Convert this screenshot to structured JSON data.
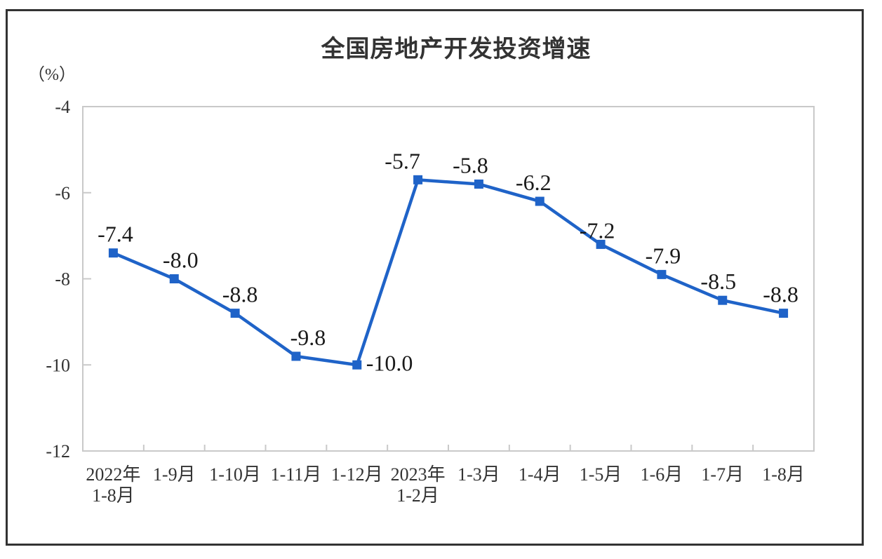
{
  "chart_data": {
    "type": "line",
    "title": "全国房地产开发投资增速",
    "unit_label": "（%）",
    "categories": [
      [
        "2022年",
        "1-8月"
      ],
      [
        "1-9月"
      ],
      [
        "1-10月"
      ],
      [
        "1-11月"
      ],
      [
        "1-12月"
      ],
      [
        "2023年",
        "1-2月"
      ],
      [
        "1-3月"
      ],
      [
        "1-4月"
      ],
      [
        "1-5月"
      ],
      [
        "1-6月"
      ],
      [
        "1-7月"
      ],
      [
        "1-8月"
      ]
    ],
    "series": [
      {
        "name": "全国房地产开发投资增速",
        "values": [
          -7.4,
          -8.0,
          -8.8,
          -9.8,
          -10.0,
          -5.7,
          -5.8,
          -6.2,
          -7.2,
          -7.9,
          -8.5,
          -8.8
        ]
      }
    ],
    "data_labels": [
      "-7.4",
      "-8.0",
      "-8.8",
      "-9.8",
      "-10.0",
      "-5.7",
      "-5.8",
      "-6.2",
      "-7.2",
      "-7.9",
      "-8.5",
      "-8.8"
    ],
    "label_placement": [
      "above",
      "above",
      "above",
      "above",
      "right",
      "above",
      "above",
      "above",
      "above",
      "above",
      "above",
      "above"
    ],
    "xlabel": "",
    "ylabel": "（%）",
    "ylim": [
      -12,
      -4
    ],
    "yticks": [
      -4,
      -6,
      -8,
      -10,
      -12
    ],
    "grid": false,
    "legend": "none",
    "line_color": "#1F63C8",
    "marker": "square",
    "axis_color": "#C9C9C9",
    "text_color": "#333333",
    "label_color": "#1a1a1a",
    "frame_color": "#333333"
  }
}
